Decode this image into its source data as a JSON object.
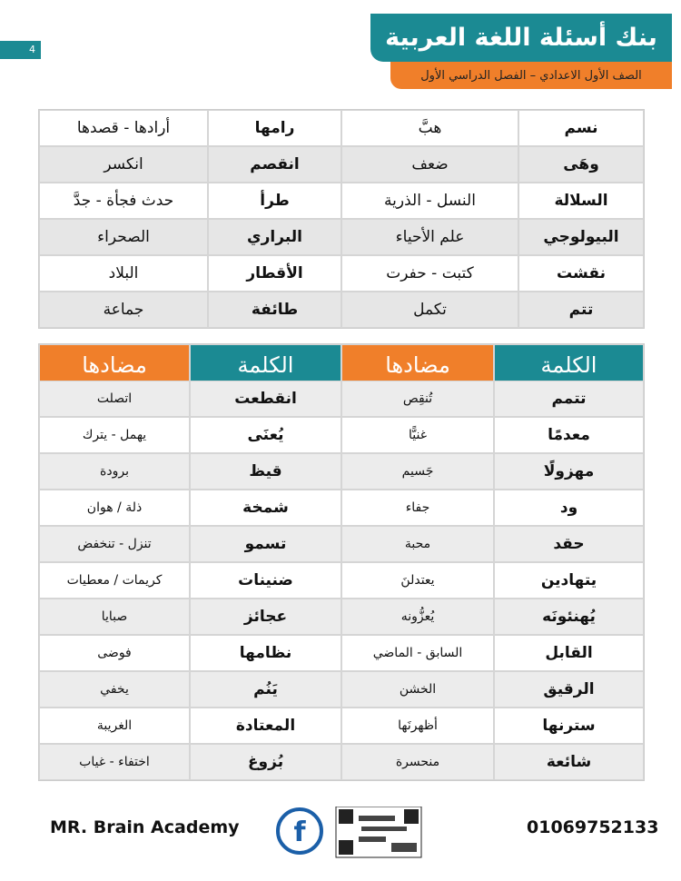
{
  "header": {
    "title": "بنك أسئلة اللغة العربية",
    "subtitle": "الصف الأول الاعدادي – الفصل الدراسي الأول",
    "page_number": "4"
  },
  "table1": {
    "rows": [
      [
        "نسم",
        "هبَّ",
        "رامها",
        "أرادها - قصدها"
      ],
      [
        "وهَى",
        "ضعف",
        "انقصم",
        "انكسر"
      ],
      [
        "السلالة",
        "النسل - الذرية",
        "طرأ",
        "حدث فجأة - جدَّ"
      ],
      [
        "البيولوجي",
        "علم الأحياء",
        "البراري",
        "الصحراء"
      ],
      [
        "نقشت",
        "كتبت - حفرت",
        "الأقطار",
        "البلاد"
      ],
      [
        "تتم",
        "تكمل",
        "طائفة",
        "جماعة"
      ]
    ]
  },
  "table2": {
    "header": [
      "الكلمة",
      "مضادها",
      "الكلمة",
      "مضادها"
    ],
    "rows": [
      [
        "تتمم",
        "تُنقِص",
        "انقطعت",
        "اتصلت"
      ],
      [
        "معدمًا",
        "غنيًّا",
        "يُعنَى",
        "يهمل - يترك"
      ],
      [
        "مهزولًا",
        "جَسيم",
        "قيظ",
        "برودة"
      ],
      [
        "ود",
        "جفاء",
        "شمخة",
        "ذلة / هوان"
      ],
      [
        "حقد",
        "محبة",
        "تسمو",
        "تنزل - تنخفض"
      ],
      [
        "يتهادين",
        "يعتدلنَ",
        "ضنينات",
        "كريمات / معطيات"
      ],
      [
        "يُهنئونَه",
        "يُعزُّونه",
        "عجائز",
        "صبايا"
      ],
      [
        "القابل",
        "السابق - الماضي",
        "نظامها",
        "فوضى"
      ],
      [
        "الرقيق",
        "الخشن",
        "يَنُم",
        "يخفي"
      ],
      [
        "سترنها",
        "أظهرنَها",
        "المعتادة",
        "الغريبة"
      ],
      [
        "شائعة",
        "منحسرة",
        "بُزوغ",
        "اختفاء - غياب"
      ]
    ]
  },
  "footer": {
    "brand": "MR. Brain Academy",
    "phone": "01069752133"
  }
}
